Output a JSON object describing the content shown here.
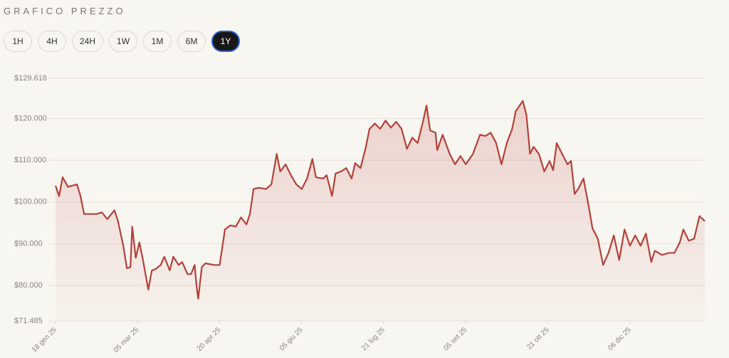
{
  "header": {
    "title": "GRAFICO PREZZO"
  },
  "controls": {
    "ranges": [
      "1H",
      "4H",
      "24H",
      "1W",
      "1M",
      "6M",
      "1Y"
    ],
    "selected_index": 6
  },
  "chart_data": {
    "type": "area",
    "color": "#b5403a",
    "grid": true,
    "ylim": [
      71485,
      129618
    ],
    "yticks": [
      {
        "value": 71485,
        "label": "$71.485"
      },
      {
        "value": 80000,
        "label": "$80.000"
      },
      {
        "value": 90000,
        "label": "$90.000"
      },
      {
        "value": 100000,
        "label": "$100.000"
      },
      {
        "value": 110000,
        "label": "$110.000"
      },
      {
        "value": 120000,
        "label": "$120.000"
      },
      {
        "value": 129618,
        "label": "$129.618"
      }
    ],
    "xlim": [
      "2025-01-18",
      "2026-01-17"
    ],
    "xticks": [
      {
        "value": "2025-01-18",
        "label": "18 gen 25"
      },
      {
        "value": "2025-03-05",
        "label": "05 mar 25"
      },
      {
        "value": "2025-04-20",
        "label": "20 apr 25"
      },
      {
        "value": "2025-06-05",
        "label": "05 giu 25"
      },
      {
        "value": "2025-07-21",
        "label": "21 lug 25"
      },
      {
        "value": "2025-09-05",
        "label": "05 set 25"
      },
      {
        "value": "2025-10-21",
        "label": "21 ott 25"
      },
      {
        "value": "2025-12-06",
        "label": "06 dic 25"
      }
    ],
    "x": [
      "2025-01-18",
      "2025-01-20",
      "2025-01-22",
      "2025-01-25",
      "2025-01-30",
      "2025-02-01",
      "2025-02-03",
      "2025-02-10",
      "2025-02-13",
      "2025-02-16",
      "2025-02-20",
      "2025-02-22",
      "2025-02-25",
      "2025-02-27",
      "2025-03-01",
      "2025-03-02",
      "2025-03-04",
      "2025-03-06",
      "2025-03-08",
      "2025-03-11",
      "2025-03-13",
      "2025-03-15",
      "2025-03-18",
      "2025-03-20",
      "2025-03-23",
      "2025-03-25",
      "2025-03-28",
      "2025-03-30",
      "2025-04-02",
      "2025-04-04",
      "2025-04-06",
      "2025-04-07",
      "2025-04-08",
      "2025-04-10",
      "2025-04-12",
      "2025-04-17",
      "2025-04-20",
      "2025-04-23",
      "2025-04-26",
      "2025-04-29",
      "2025-05-02",
      "2025-05-05",
      "2025-05-07",
      "2025-05-09",
      "2025-05-12",
      "2025-05-16",
      "2025-05-19",
      "2025-05-22",
      "2025-05-24",
      "2025-05-27",
      "2025-05-30",
      "2025-06-02",
      "2025-06-05",
      "2025-06-08",
      "2025-06-11",
      "2025-06-13",
      "2025-06-17",
      "2025-06-19",
      "2025-06-22",
      "2025-06-24",
      "2025-06-27",
      "2025-06-30",
      "2025-07-03",
      "2025-07-05",
      "2025-07-08",
      "2025-07-11",
      "2025-07-13",
      "2025-07-16",
      "2025-07-19",
      "2025-07-22",
      "2025-07-25",
      "2025-07-28",
      "2025-07-31",
      "2025-08-03",
      "2025-08-06",
      "2025-08-09",
      "2025-08-12",
      "2025-08-14",
      "2025-08-16",
      "2025-08-19",
      "2025-08-20",
      "2025-08-23",
      "2025-08-27",
      "2025-08-30",
      "2025-09-02",
      "2025-09-05",
      "2025-09-09",
      "2025-09-13",
      "2025-09-16",
      "2025-09-19",
      "2025-09-22",
      "2025-09-25",
      "2025-09-28",
      "2025-10-01",
      "2025-10-03",
      "2025-10-07",
      "2025-10-09",
      "2025-10-11",
      "2025-10-13",
      "2025-10-16",
      "2025-10-19",
      "2025-10-22",
      "2025-10-24",
      "2025-10-26",
      "2025-10-29",
      "2025-11-01",
      "2025-11-03",
      "2025-11-05",
      "2025-11-07",
      "2025-11-10",
      "2025-11-13",
      "2025-11-15",
      "2025-11-18",
      "2025-11-21",
      "2025-11-24",
      "2025-11-27",
      "2025-11-30",
      "2025-12-03",
      "2025-12-06",
      "2025-12-09",
      "2025-12-12",
      "2025-12-15",
      "2025-12-18",
      "2025-12-20",
      "2025-12-24",
      "2025-12-28",
      "2025-12-31",
      "2026-01-03",
      "2026-01-05",
      "2026-01-08",
      "2026-01-11",
      "2026-01-14",
      "2026-01-17"
    ],
    "values": [
      103900,
      101400,
      105900,
      103600,
      104200,
      101400,
      97100,
      97100,
      97500,
      95900,
      98000,
      95400,
      89500,
      84100,
      84400,
      94100,
      86600,
      90300,
      86100,
      79000,
      83600,
      83900,
      84900,
      86900,
      83600,
      86900,
      84900,
      85600,
      82700,
      82700,
      84900,
      80200,
      76800,
      84400,
      85300,
      84900,
      84900,
      93400,
      94400,
      94100,
      96300,
      94600,
      97100,
      103100,
      103400,
      103100,
      104200,
      111500,
      107300,
      109000,
      106400,
      104200,
      103100,
      105600,
      110300,
      105900,
      105600,
      106400,
      101400,
      106800,
      107300,
      108100,
      105600,
      109300,
      108100,
      113200,
      117500,
      118800,
      117500,
      119500,
      117800,
      119200,
      117500,
      112700,
      115400,
      114100,
      119200,
      123100,
      117100,
      116600,
      112400,
      116100,
      111500,
      109000,
      111000,
      109000,
      111500,
      116100,
      115800,
      116600,
      114100,
      109000,
      114100,
      117500,
      121700,
      124200,
      120800,
      111500,
      113200,
      111500,
      107300,
      109800,
      107600,
      114100,
      111500,
      109000,
      109800,
      101900,
      103100,
      105600,
      98800,
      93700,
      91200,
      84900,
      87800,
      92000,
      86100,
      93400,
      89500,
      92000,
      89500,
      92400,
      85600,
      88300,
      87300,
      87800,
      87800,
      90300,
      93400,
      90700,
      91200,
      96600,
      95400
    ]
  }
}
